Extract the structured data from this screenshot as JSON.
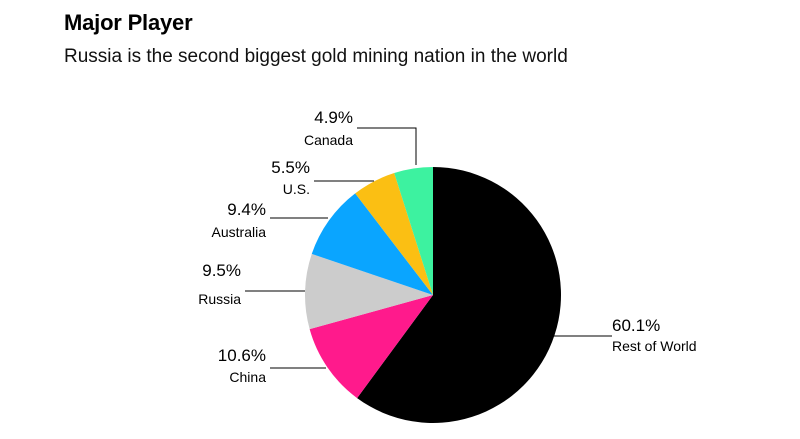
{
  "header": {
    "title": "Major Player",
    "subtitle": "Russia is the second biggest gold mining nation in the world"
  },
  "chart_data": {
    "type": "pie",
    "title": "Major Player",
    "subtitle": "Russia is the second biggest gold mining nation in the world",
    "slices": [
      {
        "name": "Rest of World",
        "value": 60.1,
        "label": "60.1%",
        "color": "#000000"
      },
      {
        "name": "China",
        "value": 10.6,
        "label": "10.6%",
        "color": "#ff1a8c"
      },
      {
        "name": "Russia",
        "value": 9.5,
        "label": "9.5%",
        "color": "#cccccc"
      },
      {
        "name": "Australia",
        "value": 9.4,
        "label": "9.4%",
        "color": "#0aa5ff"
      },
      {
        "name": "U.S.",
        "value": 5.5,
        "label": "5.5%",
        "color": "#fbbf13"
      },
      {
        "name": "Canada",
        "value": 4.9,
        "label": "4.9%",
        "color": "#3df2a0"
      }
    ],
    "legend": "none"
  }
}
